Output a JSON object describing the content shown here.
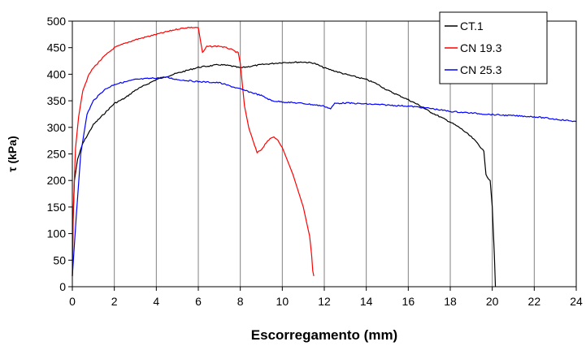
{
  "chart_data": {
    "type": "line",
    "title": "",
    "xlabel": "Escorregamento (mm)",
    "ylabel": "τ (kPa)",
    "xlim": [
      0,
      24
    ],
    "ylim": [
      0,
      500
    ],
    "xticks": [
      0,
      2,
      4,
      6,
      8,
      10,
      12,
      14,
      16,
      18,
      20,
      22,
      24
    ],
    "yticks": [
      0,
      50,
      100,
      150,
      200,
      250,
      300,
      350,
      400,
      450,
      500
    ],
    "grid": "vertical",
    "legend_position": "top-right",
    "series": [
      {
        "name": "CT.1",
        "color": "#000000",
        "points": [
          [
            0.0,
            20
          ],
          [
            0.03,
            120
          ],
          [
            0.1,
            200
          ],
          [
            0.25,
            240
          ],
          [
            0.5,
            270
          ],
          [
            1.0,
            305
          ],
          [
            1.5,
            325
          ],
          [
            2.0,
            345
          ],
          [
            2.5,
            355
          ],
          [
            3.0,
            370
          ],
          [
            4.0,
            390
          ],
          [
            5.0,
            402
          ],
          [
            6.0,
            413
          ],
          [
            7.0,
            418
          ],
          [
            7.5,
            416
          ],
          [
            8.0,
            412
          ],
          [
            8.5,
            415
          ],
          [
            9.0,
            418
          ],
          [
            10.0,
            422
          ],
          [
            11.0,
            423
          ],
          [
            11.5,
            421
          ],
          [
            12.0,
            412
          ],
          [
            13.0,
            400
          ],
          [
            14.0,
            390
          ],
          [
            14.5,
            382
          ],
          [
            15.0,
            370
          ],
          [
            16.0,
            352
          ],
          [
            16.5,
            342
          ],
          [
            17.0,
            330
          ],
          [
            18.0,
            310
          ],
          [
            18.5,
            298
          ],
          [
            19.0,
            282
          ],
          [
            19.3,
            270
          ],
          [
            19.6,
            255
          ],
          [
            19.7,
            210
          ],
          [
            19.9,
            200
          ],
          [
            20.0,
            150
          ],
          [
            20.1,
            60
          ],
          [
            20.15,
            0
          ]
        ]
      },
      {
        "name": "CN 19.3",
        "color": "#ff0000",
        "points": [
          [
            0.0,
            20
          ],
          [
            0.05,
            150
          ],
          [
            0.15,
            260
          ],
          [
            0.3,
            320
          ],
          [
            0.5,
            370
          ],
          [
            0.8,
            400
          ],
          [
            1.0,
            412
          ],
          [
            1.5,
            433
          ],
          [
            2.0,
            450
          ],
          [
            2.5,
            458
          ],
          [
            3.0,
            465
          ],
          [
            3.5,
            470
          ],
          [
            4.0,
            475
          ],
          [
            4.5,
            480
          ],
          [
            5.0,
            485
          ],
          [
            5.5,
            488
          ],
          [
            6.0,
            488
          ],
          [
            6.2,
            440
          ],
          [
            6.4,
            452
          ],
          [
            7.0,
            453
          ],
          [
            7.5,
            448
          ],
          [
            7.9,
            440
          ],
          [
            8.0,
            420
          ],
          [
            8.2,
            340
          ],
          [
            8.4,
            300
          ],
          [
            8.6,
            275
          ],
          [
            8.8,
            252
          ],
          [
            9.0,
            258
          ],
          [
            9.3,
            275
          ],
          [
            9.6,
            282
          ],
          [
            9.8,
            276
          ],
          [
            10.0,
            262
          ],
          [
            10.5,
            212
          ],
          [
            11.0,
            150
          ],
          [
            11.3,
            95
          ],
          [
            11.4,
            58
          ],
          [
            11.45,
            30
          ],
          [
            11.5,
            20
          ]
        ]
      },
      {
        "name": "CN 25.3",
        "color": "#0000ff",
        "points": [
          [
            0.0,
            20
          ],
          [
            0.2,
            140
          ],
          [
            0.4,
            250
          ],
          [
            0.7,
            325
          ],
          [
            1.0,
            350
          ],
          [
            1.5,
            370
          ],
          [
            2.0,
            381
          ],
          [
            3.0,
            390
          ],
          [
            4.0,
            393
          ],
          [
            4.5,
            394
          ],
          [
            5.0,
            390
          ],
          [
            6.0,
            386
          ],
          [
            7.0,
            384
          ],
          [
            8.0,
            372
          ],
          [
            9.0,
            360
          ],
          [
            9.5,
            350
          ],
          [
            10.0,
            348
          ],
          [
            11.0,
            345
          ],
          [
            12.0,
            340
          ],
          [
            12.3,
            335
          ],
          [
            12.5,
            345
          ],
          [
            13.0,
            346
          ],
          [
            14.0,
            344
          ],
          [
            15.0,
            342
          ],
          [
            16.0,
            340
          ],
          [
            17.0,
            336
          ],
          [
            18.0,
            330
          ],
          [
            19.0,
            327
          ],
          [
            20.0,
            324
          ],
          [
            22.0,
            320
          ],
          [
            24.0,
            311
          ]
        ]
      }
    ]
  }
}
